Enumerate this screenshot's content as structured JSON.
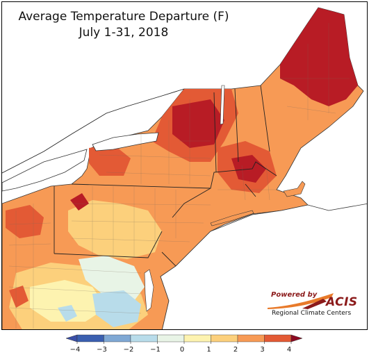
{
  "title": {
    "line1": "Average Temperature Departure (F)",
    "line2": "July 1-31, 2018"
  },
  "credit": {
    "powered_by": "Powered by",
    "acis": "ACIS",
    "rcc": "Regional Climate Centers"
  },
  "legend": {
    "ticks": [
      "−4",
      "−3",
      "−2",
      "−1",
      "0",
      "1",
      "2",
      "3",
      "4"
    ],
    "colors": [
      "#3a5fb0",
      "#7fa8d4",
      "#b8dcea",
      "#e8f4e6",
      "#fdf3b0",
      "#fcd07c",
      "#f79a55",
      "#e35a35",
      "#b81c25"
    ],
    "under_color": "#3a4fa8",
    "over_color": "#8c0a22"
  },
  "map": {
    "background": "#ffffff",
    "border_color": "#000000"
  }
}
